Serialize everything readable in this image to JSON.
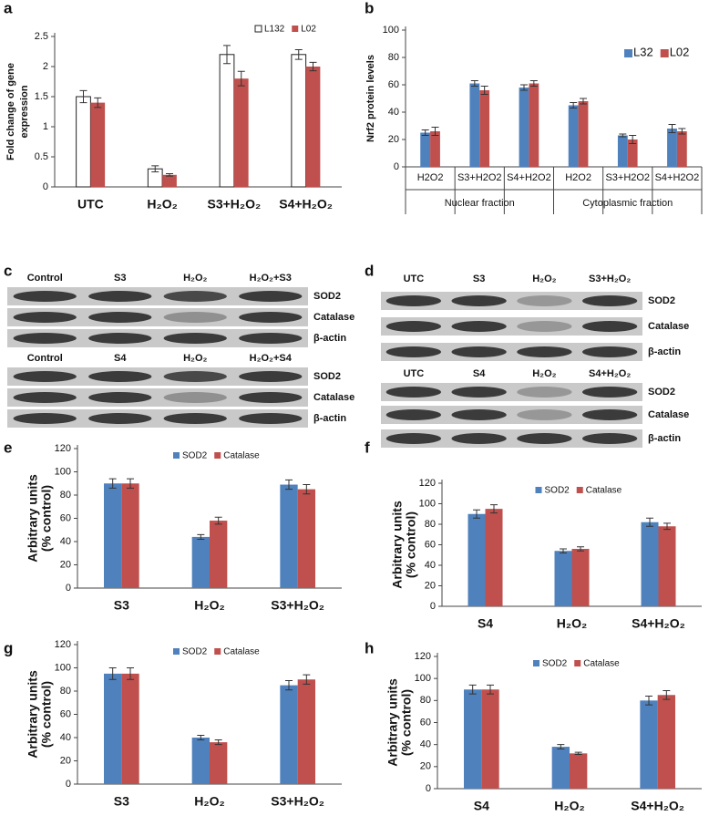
{
  "chart_data": [
    {
      "type": "bar",
      "panel_label": "a",
      "ylabel": [
        "Fold change of gene",
        "expression"
      ],
      "categories": [
        "UTC",
        "H₂O₂",
        "S3+H₂O₂",
        "S4+H₂O₂"
      ],
      "series": [
        {
          "name": "L132",
          "color": "#ffffff",
          "values": [
            1.5,
            0.3,
            2.2,
            2.2
          ],
          "errors": [
            0.1,
            0.05,
            0.15,
            0.08
          ]
        },
        {
          "name": "L02",
          "color": "#c0504d",
          "values": [
            1.4,
            0.2,
            1.8,
            2.0
          ],
          "errors": [
            0.08,
            0.02,
            0.12,
            0.07
          ]
        }
      ],
      "ylim": [
        0,
        2.5
      ],
      "yticks": [
        0,
        0.5,
        1,
        1.5,
        2,
        2.5
      ],
      "legend": "top-right"
    },
    {
      "type": "bar",
      "panel_label": "b",
      "ylabel": [
        "Nrf2 protein levels"
      ],
      "categories": [
        "H2O2",
        "S3+H2O2",
        "S4+H2O2",
        "H2O2",
        "S3+H2O2",
        "S4+H2O2"
      ],
      "groups": [
        "Nuclear fraction",
        "Cytoplasmic fraction"
      ],
      "series": [
        {
          "name": "L32",
          "color": "#4f81bd",
          "values": [
            25,
            61,
            58,
            45,
            23,
            28
          ],
          "errors": [
            2,
            2,
            2,
            2,
            1,
            3
          ]
        },
        {
          "name": "L02",
          "color": "#c0504d",
          "values": [
            26,
            56,
            61,
            48,
            20,
            26
          ],
          "errors": [
            3,
            3,
            2,
            2,
            3,
            2
          ]
        }
      ],
      "ylim": [
        0,
        100
      ],
      "yticks": [
        0,
        20,
        40,
        60,
        80,
        100
      ],
      "legend": "right"
    },
    {
      "type": "bar",
      "panel_label": "e",
      "ylabel": [
        "Arbitrary units",
        "(% control)"
      ],
      "categories": [
        "S3",
        "H₂O₂",
        "S3+H₂O₂"
      ],
      "series": [
        {
          "name": "SOD2",
          "color": "#4f81bd",
          "values": [
            90,
            44,
            89
          ],
          "errors": [
            4,
            2,
            4
          ]
        },
        {
          "name": "Catalase",
          "color": "#c0504d",
          "values": [
            90,
            58,
            85
          ],
          "errors": [
            4,
            3,
            4
          ]
        }
      ],
      "ylim": [
        0,
        120
      ],
      "yticks": [
        0,
        20,
        40,
        60,
        80,
        100,
        120
      ],
      "legend": "top"
    },
    {
      "type": "bar",
      "panel_label": "f",
      "ylabel": [
        "Arbitrary units",
        "(% control)"
      ],
      "categories": [
        "S4",
        "H₂O₂",
        "S4+H₂O₂"
      ],
      "series": [
        {
          "name": "SOD2",
          "color": "#4f81bd",
          "values": [
            90,
            54,
            82
          ],
          "errors": [
            4,
            2,
            4
          ]
        },
        {
          "name": "Catalase",
          "color": "#c0504d",
          "values": [
            95,
            56,
            78
          ],
          "errors": [
            4,
            2,
            3
          ]
        }
      ],
      "ylim": [
        0,
        120
      ],
      "yticks": [
        0,
        20,
        40,
        60,
        80,
        100,
        120
      ],
      "legend": "top"
    },
    {
      "type": "bar",
      "panel_label": "g",
      "ylabel": [
        "Arbitrary units",
        "(% control)"
      ],
      "categories": [
        "S3",
        "H₂O₂",
        "S3+H₂O₂"
      ],
      "series": [
        {
          "name": "SOD2",
          "color": "#4f81bd",
          "values": [
            95,
            40,
            85
          ],
          "errors": [
            5,
            2,
            4
          ]
        },
        {
          "name": "Catalase",
          "color": "#c0504d",
          "values": [
            95,
            36,
            90
          ],
          "errors": [
            5,
            2,
            4
          ]
        }
      ],
      "ylim": [
        0,
        120
      ],
      "yticks": [
        0,
        20,
        40,
        60,
        80,
        100,
        120
      ],
      "legend": "top"
    },
    {
      "type": "bar",
      "panel_label": "h",
      "ylabel": [
        "Arbitrary units",
        "(% control)"
      ],
      "categories": [
        "S4",
        "H₂O₂",
        "S4+H₂O₂"
      ],
      "series": [
        {
          "name": "SOD2",
          "color": "#4f81bd",
          "values": [
            90,
            38,
            80
          ],
          "errors": [
            4,
            2,
            4
          ]
        },
        {
          "name": "Catalase",
          "color": "#c0504d",
          "values": [
            90,
            32,
            85
          ],
          "errors": [
            4,
            1,
            4
          ]
        }
      ],
      "ylim": [
        0,
        120
      ],
      "yticks": [
        0,
        20,
        40,
        60,
        80,
        100,
        120
      ],
      "legend": "top"
    }
  ],
  "blots": [
    {
      "panel_label": "c",
      "blocks": [
        {
          "columns": [
            "Control",
            "S3",
            "H₂O₂",
            "H₂O₂+S3"
          ],
          "rows": [
            "SOD2",
            "Catalase",
            "β-actin"
          ]
        },
        {
          "columns": [
            "Control",
            "S4",
            "H₂O₂",
            "H₂O₂+S4"
          ],
          "rows": [
            "SOD2",
            "Catalase",
            "β-actin"
          ]
        }
      ]
    },
    {
      "panel_label": "d",
      "blocks": [
        {
          "columns": [
            "UTC",
            "S3",
            "H₂O₂",
            "S3+H₂O₂"
          ],
          "rows": [
            "SOD2",
            "Catalase",
            "β-actin"
          ]
        },
        {
          "columns": [
            "UTC",
            "S4",
            "H₂O₂",
            "S4+H₂O₂"
          ],
          "rows": [
            "SOD2",
            "Catalase",
            "β-actin"
          ]
        }
      ]
    }
  ]
}
